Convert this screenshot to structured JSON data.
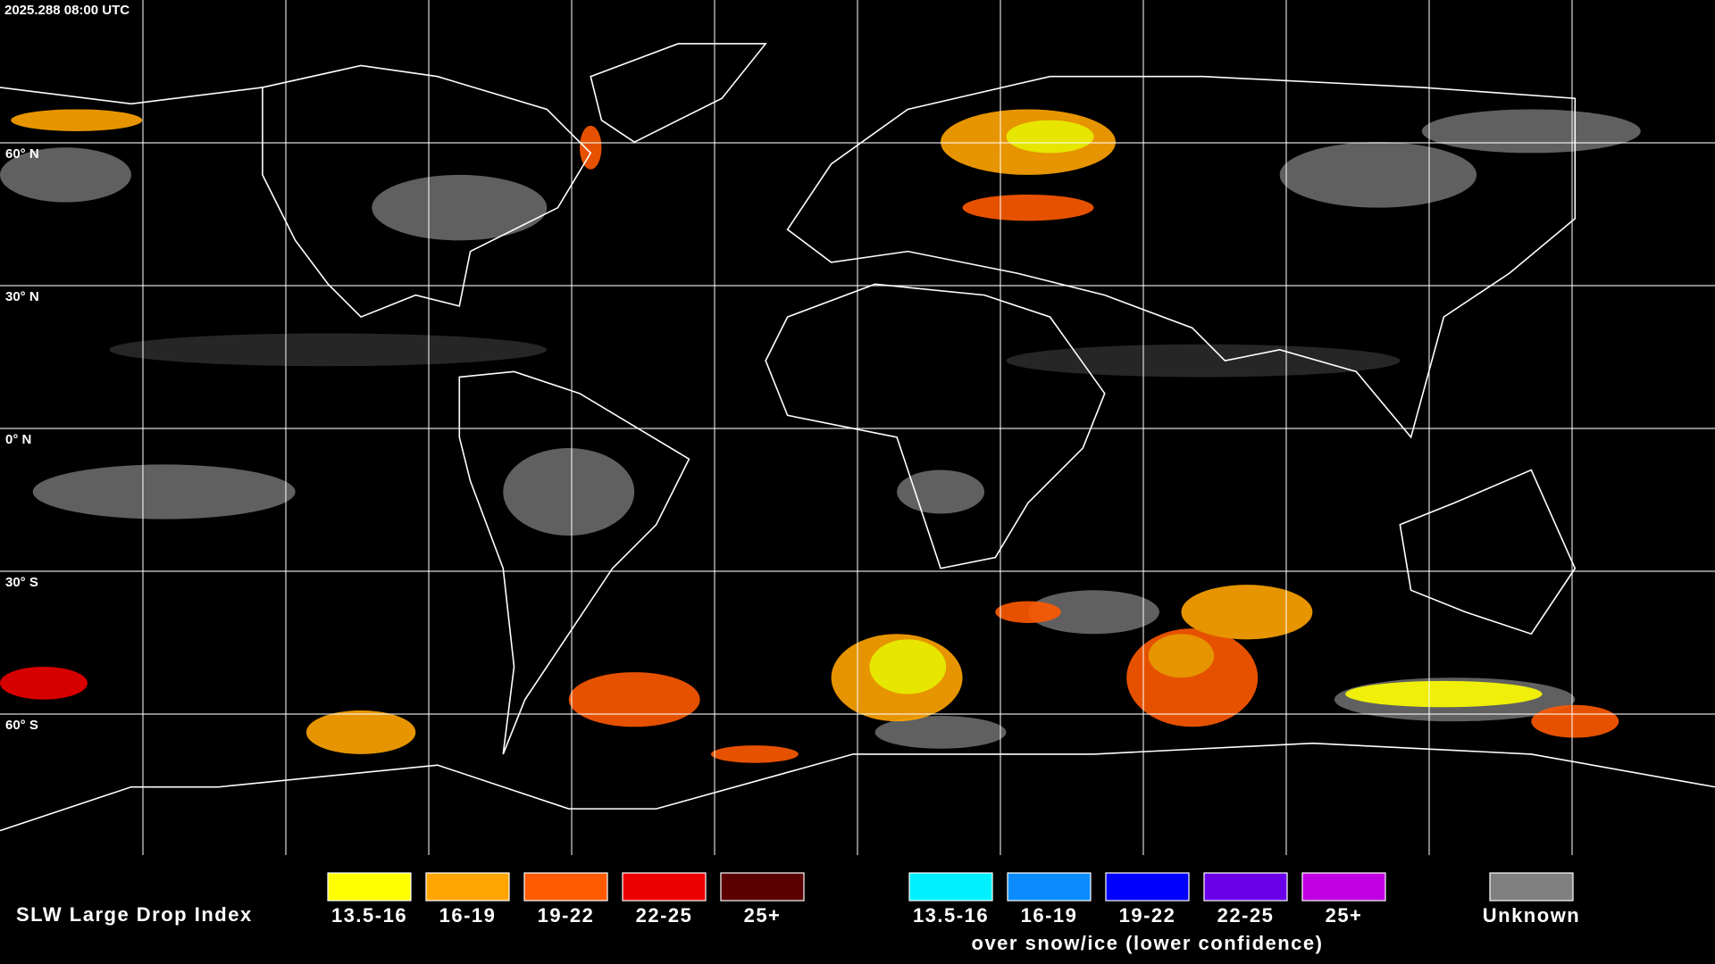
{
  "timestamp": "2025.288 08:00 UTC",
  "latitude_labels": [
    "60° N",
    "30° N",
    "0° N",
    "30° S",
    "60° S"
  ],
  "legend": {
    "title": "SLW Large Drop Index",
    "groups": [
      {
        "items": [
          {
            "label": "13.5-16",
            "color": "#ffff00"
          },
          {
            "label": "16-19",
            "color": "#ffa500"
          },
          {
            "label": "19-22",
            "color": "#ff5a00"
          },
          {
            "label": "22-25",
            "color": "#ee0000"
          },
          {
            "label": "25+",
            "color": "#5a0000"
          }
        ]
      },
      {
        "items": [
          {
            "label": "13.5-16",
            "color": "#00f0ff"
          },
          {
            "label": "16-19",
            "color": "#0a8cff"
          },
          {
            "label": "19-22",
            "color": "#0000ff"
          },
          {
            "label": "22-25",
            "color": "#6a00e8"
          },
          {
            "label": "25+",
            "color": "#c000e0"
          }
        ],
        "caption": "over snow/ice (lower confidence)"
      },
      {
        "items": [
          {
            "label": "Unknown",
            "color": "#808080"
          }
        ]
      }
    ]
  }
}
